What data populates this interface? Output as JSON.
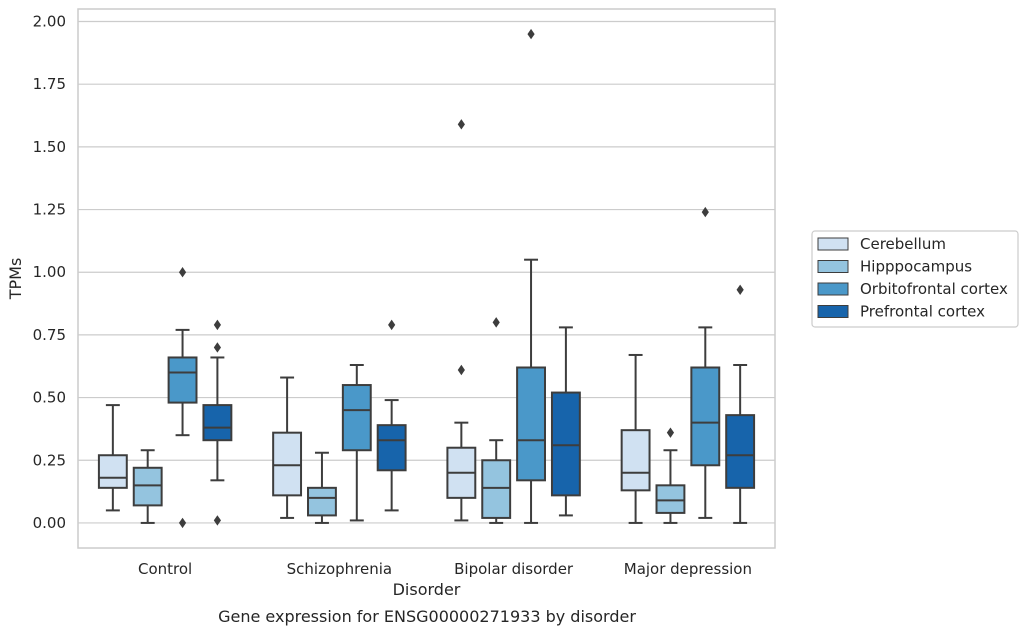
{
  "chart_data": {
    "type": "box",
    "title": "",
    "caption": "Gene expression for ENSG00000271933 by disorder",
    "xlabel": "Disorder",
    "ylabel": "TPMs",
    "ylim": [
      -0.1,
      2.05
    ],
    "yticks": [
      0.0,
      0.25,
      0.5,
      0.75,
      1.0,
      1.25,
      1.5,
      1.75,
      2.0
    ],
    "ytick_labels": [
      "0.00",
      "0.25",
      "0.50",
      "0.75",
      "1.00",
      "1.25",
      "1.50",
      "1.75",
      "2.00"
    ],
    "grid": "horizontal",
    "legend_position": "right",
    "categories": [
      "Control",
      "Schizophrenia",
      "Bipolar disorder",
      "Major depression"
    ],
    "series": [
      {
        "name": "Cerebellum",
        "color": "#d0e1f2",
        "boxes": [
          {
            "whisker_low": 0.05,
            "q1": 0.14,
            "median": 0.18,
            "q3": 0.27,
            "whisker_high": 0.47,
            "outliers": []
          },
          {
            "whisker_low": 0.02,
            "q1": 0.11,
            "median": 0.23,
            "q3": 0.36,
            "whisker_high": 0.58,
            "outliers": []
          },
          {
            "whisker_low": 0.01,
            "q1": 0.1,
            "median": 0.2,
            "q3": 0.3,
            "whisker_high": 0.4,
            "outliers": [
              0.61,
              1.59
            ]
          },
          {
            "whisker_low": 0.0,
            "q1": 0.13,
            "median": 0.2,
            "q3": 0.37,
            "whisker_high": 0.67,
            "outliers": []
          }
        ]
      },
      {
        "name": "Hipppocampus",
        "color": "#94c4df",
        "boxes": [
          {
            "whisker_low": 0.0,
            "q1": 0.07,
            "median": 0.15,
            "q3": 0.22,
            "whisker_high": 0.29,
            "outliers": []
          },
          {
            "whisker_low": 0.0,
            "q1": 0.03,
            "median": 0.1,
            "q3": 0.14,
            "whisker_high": 0.28,
            "outliers": []
          },
          {
            "whisker_low": 0.0,
            "q1": 0.02,
            "median": 0.14,
            "q3": 0.25,
            "whisker_high": 0.33,
            "outliers": [
              0.8
            ]
          },
          {
            "whisker_low": 0.0,
            "q1": 0.04,
            "median": 0.09,
            "q3": 0.15,
            "whisker_high": 0.29,
            "outliers": [
              0.36
            ]
          }
        ]
      },
      {
        "name": "Orbitofrontal cortex",
        "color": "#4a98c9",
        "boxes": [
          {
            "whisker_low": 0.35,
            "q1": 0.48,
            "median": 0.6,
            "q3": 0.66,
            "whisker_high": 0.77,
            "outliers": [
              0.0,
              1.0
            ]
          },
          {
            "whisker_low": 0.01,
            "q1": 0.29,
            "median": 0.45,
            "q3": 0.55,
            "whisker_high": 0.63,
            "outliers": []
          },
          {
            "whisker_low": 0.0,
            "q1": 0.17,
            "median": 0.33,
            "q3": 0.62,
            "whisker_high": 1.05,
            "outliers": [
              1.95
            ]
          },
          {
            "whisker_low": 0.02,
            "q1": 0.23,
            "median": 0.4,
            "q3": 0.62,
            "whisker_high": 0.78,
            "outliers": [
              1.24
            ]
          }
        ]
      },
      {
        "name": "Prefrontal cortex",
        "color": "#1764ab",
        "boxes": [
          {
            "whisker_low": 0.17,
            "q1": 0.33,
            "median": 0.38,
            "q3": 0.47,
            "whisker_high": 0.66,
            "outliers": [
              0.01,
              0.7,
              0.79
            ]
          },
          {
            "whisker_low": 0.05,
            "q1": 0.21,
            "median": 0.33,
            "q3": 0.39,
            "whisker_high": 0.49,
            "outliers": [
              0.79
            ]
          },
          {
            "whisker_low": 0.03,
            "q1": 0.11,
            "median": 0.31,
            "q3": 0.52,
            "whisker_high": 0.78,
            "outliers": []
          },
          {
            "whisker_low": 0.0,
            "q1": 0.14,
            "median": 0.27,
            "q3": 0.43,
            "whisker_high": 0.63,
            "outliers": [
              0.93
            ]
          }
        ]
      }
    ]
  }
}
